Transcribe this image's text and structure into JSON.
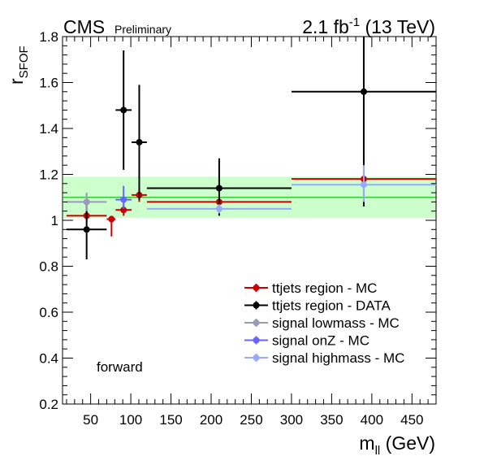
{
  "header": {
    "experiment": "CMS",
    "status": "Preliminary",
    "lumi_value": "2.1 fb",
    "lumi_exp": "-1",
    "energy": "(13 TeV)"
  },
  "annotation": "forward",
  "chart_data": {
    "type": "scatter",
    "xlabel_main": "m",
    "xlabel_sub": "ll",
    "xlabel_unit": "(GeV)",
    "ylabel_main": "r",
    "ylabel_sub": "SFOF",
    "xlim": [
      15,
      480
    ],
    "ylim": [
      0.2,
      1.8
    ],
    "x_ticks": [
      50,
      100,
      150,
      200,
      250,
      300,
      350,
      400,
      450
    ],
    "y_ticks": [
      0.2,
      0.4,
      0.6,
      0.8,
      1.0,
      1.2,
      1.4,
      1.6,
      1.8
    ],
    "y_tick_labels": [
      "0.2",
      "0.4",
      "0.6",
      "0.8",
      "1",
      "1.2",
      "1.4",
      "1.6",
      "1.8"
    ],
    "grid": false,
    "band": {
      "center": 1.1,
      "low": 1.01,
      "high": 1.19,
      "color": "#ccffcc",
      "line_color": "#33cc33"
    },
    "legend_position": "bottom-right",
    "series": [
      {
        "name": "ttjets region - MC",
        "color": "#cc0000",
        "points": [
          {
            "x": 45,
            "y": 1.02,
            "xlo": 20,
            "xhi": 70,
            "ylo": 1.0,
            "yhi": 1.04
          },
          {
            "x": 76,
            "y": 1.005,
            "xlo": 70,
            "xhi": 81,
            "ylo": 0.93,
            "yhi": 1.02
          },
          {
            "x": 91,
            "y": 1.045,
            "xlo": 81,
            "xhi": 101,
            "ylo": 1.02,
            "yhi": 1.07
          },
          {
            "x": 110.5,
            "y": 1.11,
            "xlo": 101,
            "xhi": 120,
            "ylo": 1.08,
            "yhi": 1.14
          },
          {
            "x": 210,
            "y": 1.08,
            "xlo": 120,
            "xhi": 300,
            "ylo": 1.06,
            "yhi": 1.1
          },
          {
            "x": 390,
            "y": 1.18,
            "xlo": 300,
            "xhi": 480,
            "ylo": 1.15,
            "yhi": 1.21
          }
        ]
      },
      {
        "name": "ttjets region - DATA",
        "color": "#000000",
        "points": [
          {
            "x": 45,
            "y": 0.96,
            "xlo": 20,
            "xhi": 70,
            "ylo": 0.83,
            "yhi": 1.09
          },
          {
            "x": 91,
            "y": 1.48,
            "xlo": 81,
            "xhi": 101,
            "ylo": 1.22,
            "yhi": 1.74
          },
          {
            "x": 110.5,
            "y": 1.34,
            "xlo": 101,
            "xhi": 120,
            "ylo": 1.09,
            "yhi": 1.59
          },
          {
            "x": 210,
            "y": 1.14,
            "xlo": 120,
            "xhi": 300,
            "ylo": 1.02,
            "yhi": 1.27
          },
          {
            "x": 390,
            "y": 1.56,
            "xlo": 300,
            "xhi": 480,
            "ylo": 1.06,
            "yhi": 1.8
          }
        ]
      },
      {
        "name": "signal lowmass - MC",
        "color": "#9999bb",
        "points": [
          {
            "x": 45,
            "y": 1.08,
            "xlo": 20,
            "xhi": 70,
            "ylo": 1.04,
            "yhi": 1.12
          }
        ]
      },
      {
        "name": "signal onZ - MC",
        "color": "#6666ff",
        "points": [
          {
            "x": 91,
            "y": 1.09,
            "xlo": 81,
            "xhi": 101,
            "ylo": 1.05,
            "yhi": 1.15
          }
        ]
      },
      {
        "name": "signal highmass - MC",
        "color": "#99aaff",
        "points": [
          {
            "x": 210,
            "y": 1.05,
            "xlo": 120,
            "xhi": 300,
            "ylo": 1.03,
            "yhi": 1.07
          },
          {
            "x": 390,
            "y": 1.155,
            "xlo": 300,
            "xhi": 480,
            "ylo": 1.08,
            "yhi": 1.24
          }
        ]
      }
    ]
  }
}
